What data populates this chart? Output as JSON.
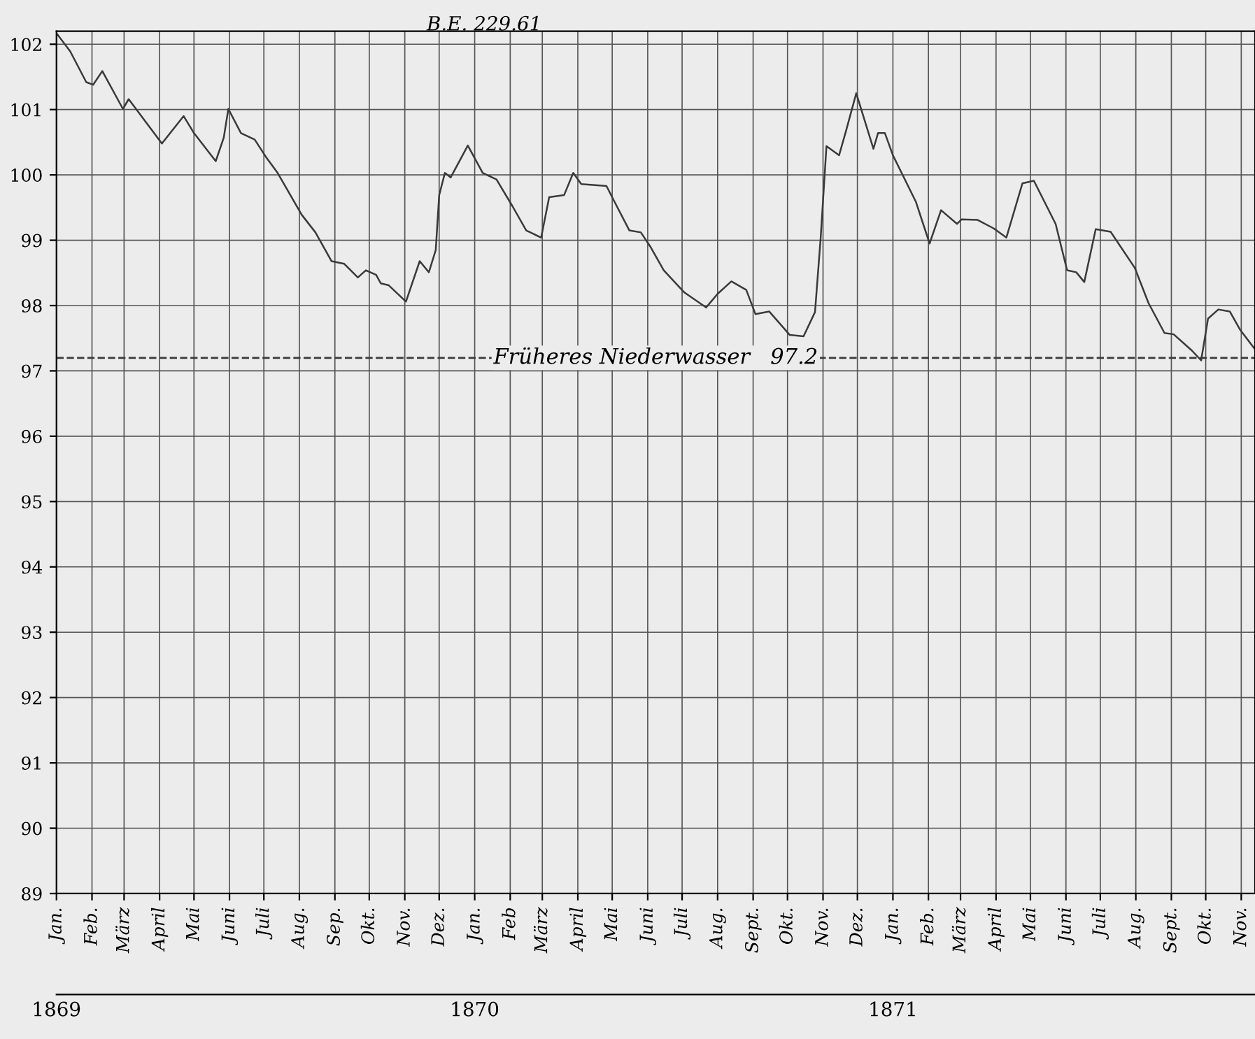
{
  "chart_data": {
    "type": "line",
    "x": [
      "1869-01-01",
      "1869-01-13",
      "1869-01-27",
      "1869-02-02",
      "1869-02-10",
      "1869-02-28",
      "1869-03-05",
      "1869-04-03",
      "1869-04-22",
      "1869-05-01",
      "1869-05-20",
      "1869-05-27",
      "1869-05-31",
      "1869-06-11",
      "1869-06-23",
      "1869-07-03",
      "1869-07-13",
      "1869-08-03",
      "1869-08-15",
      "1869-08-29",
      "1869-09-09",
      "1869-09-21",
      "1869-09-28",
      "1869-10-07",
      "1869-10-11",
      "1869-10-18",
      "1869-11-02",
      "1869-11-14",
      "1869-11-22",
      "1869-11-28",
      "1869-12-01",
      "1869-12-06",
      "1869-12-11",
      "1869-12-26",
      "1870-01-08",
      "1870-01-20",
      "1870-02-03",
      "1870-02-15",
      "1870-02-28",
      "1870-03-07",
      "1870-03-20",
      "1870-03-28",
      "1870-04-04",
      "1870-04-26",
      "1870-05-03",
      "1870-05-16",
      "1870-05-26",
      "1870-06-03",
      "1870-06-15",
      "1870-07-03",
      "1870-07-22",
      "1870-08-01",
      "1870-08-13",
      "1870-08-26",
      "1870-09-03",
      "1870-09-15",
      "1870-10-03",
      "1870-10-15",
      "1870-10-25",
      "1870-10-30",
      "1870-11-04",
      "1870-11-15",
      "1870-11-21",
      "1870-11-30",
      "1870-12-15",
      "1870-12-19",
      "1870-12-25",
      "1871-01-01",
      "1871-01-21",
      "1871-02-02",
      "1871-02-12",
      "1871-02-26",
      "1871-03-02",
      "1871-03-16",
      "1871-03-30",
      "1871-04-10",
      "1871-04-24",
      "1871-05-04",
      "1871-05-23",
      "1871-06-02",
      "1871-06-10",
      "1871-06-17",
      "1871-06-27",
      "1871-07-10",
      "1871-07-31",
      "1871-08-12",
      "1871-08-26",
      "1871-09-03",
      "1871-09-19",
      "1871-09-27",
      "1871-10-03",
      "1871-10-12",
      "1871-10-22",
      "1871-10-31",
      "1871-11-13"
    ],
    "series": [
      {
        "color": "#3a3a3a",
        "values": [
          102.17,
          101.89,
          101.42,
          101.38,
          101.59,
          101.01,
          101.16,
          100.48,
          100.9,
          100.64,
          100.21,
          100.57,
          101.01,
          100.64,
          100.54,
          100.27,
          100.03,
          99.39,
          99.12,
          98.68,
          98.64,
          98.43,
          98.54,
          98.47,
          98.34,
          98.31,
          98.06,
          98.68,
          98.51,
          98.85,
          99.69,
          100.03,
          99.96,
          100.45,
          100.03,
          99.93,
          99.52,
          99.15,
          99.04,
          99.66,
          99.69,
          100.03,
          99.86,
          99.83,
          99.59,
          99.15,
          99.12,
          98.91,
          98.54,
          98.2,
          97.97,
          98.18,
          98.37,
          98.24,
          97.87,
          97.91,
          97.55,
          97.53,
          97.9,
          99.05,
          100.44,
          100.3,
          100.67,
          101.25,
          100.4,
          100.64,
          100.64,
          100.3,
          99.59,
          98.95,
          99.46,
          99.25,
          99.32,
          99.31,
          99.18,
          99.04,
          99.87,
          99.91,
          99.25,
          98.54,
          98.51,
          98.36,
          99.17,
          99.13,
          98.58,
          98.04,
          97.58,
          97.56,
          97.31,
          97.16,
          97.8,
          97.94,
          97.91,
          97.63,
          97.33
        ]
      }
    ],
    "xlim": [
      "1869-01-01",
      "1871-11-13"
    ],
    "xticks": [
      {
        "value": "1869-01-01",
        "label": "Jan."
      },
      {
        "value": "1869-02-01",
        "label": "Feb."
      },
      {
        "value": "1869-03-01",
        "label": "März"
      },
      {
        "value": "1869-04-01",
        "label": "April"
      },
      {
        "value": "1869-05-01",
        "label": "Mai"
      },
      {
        "value": "1869-06-01",
        "label": "Juni"
      },
      {
        "value": "1869-07-01",
        "label": "Juli"
      },
      {
        "value": "1869-08-01",
        "label": "Aug."
      },
      {
        "value": "1869-09-01",
        "label": "Sep."
      },
      {
        "value": "1869-10-01",
        "label": "Okt."
      },
      {
        "value": "1869-11-01",
        "label": "Nov."
      },
      {
        "value": "1869-12-01",
        "label": "Dez."
      },
      {
        "value": "1870-01-01",
        "label": "Jan."
      },
      {
        "value": "1870-02-01",
        "label": "Feb"
      },
      {
        "value": "1870-03-01",
        "label": "März"
      },
      {
        "value": "1870-04-01",
        "label": "April"
      },
      {
        "value": "1870-05-01",
        "label": "Mai"
      },
      {
        "value": "1870-06-01",
        "label": "Juni"
      },
      {
        "value": "1870-07-01",
        "label": "Juli"
      },
      {
        "value": "1870-08-01",
        "label": "Aug."
      },
      {
        "value": "1870-09-01",
        "label": "Sept."
      },
      {
        "value": "1870-10-01",
        "label": "Okt."
      },
      {
        "value": "1870-11-01",
        "label": "Nov."
      },
      {
        "value": "1870-12-01",
        "label": "Dez."
      },
      {
        "value": "1871-01-01",
        "label": "Jan."
      },
      {
        "value": "1871-02-01",
        "label": "Feb."
      },
      {
        "value": "1871-03-01",
        "label": "März"
      },
      {
        "value": "1871-04-01",
        "label": "April"
      },
      {
        "value": "1871-05-01",
        "label": "Mai"
      },
      {
        "value": "1871-06-01",
        "label": "Juni"
      },
      {
        "value": "1871-07-01",
        "label": "Juli"
      },
      {
        "value": "1871-08-01",
        "label": "Aug."
      },
      {
        "value": "1871-09-01",
        "label": "Sept."
      },
      {
        "value": "1871-10-01",
        "label": "Okt."
      },
      {
        "value": "1871-11-01",
        "label": "Nov."
      }
    ],
    "x2lim": [
      "1869-01-01",
      "1871-11-13"
    ],
    "x2ticks": [
      {
        "value": "1869-01-01",
        "label": "1869"
      },
      {
        "value": "1870-01-01",
        "label": "1870"
      },
      {
        "value": "1871-01-01",
        "label": "1871"
      }
    ],
    "ylim": [
      89,
      102.2
    ],
    "yticks": [
      89,
      90,
      91,
      92,
      93,
      94,
      95,
      96,
      97,
      98,
      99,
      100,
      101,
      102
    ],
    "grid": true,
    "line_style": "solid",
    "marker": "none",
    "ref_lines": [
      {
        "axis": "y",
        "value": 97.2,
        "label": "Früheres Niederwasser   97.2",
        "line_style": "dashed",
        "color": "#3a3a3a"
      }
    ],
    "annotations": [
      "B.E. 229.61"
    ]
  }
}
